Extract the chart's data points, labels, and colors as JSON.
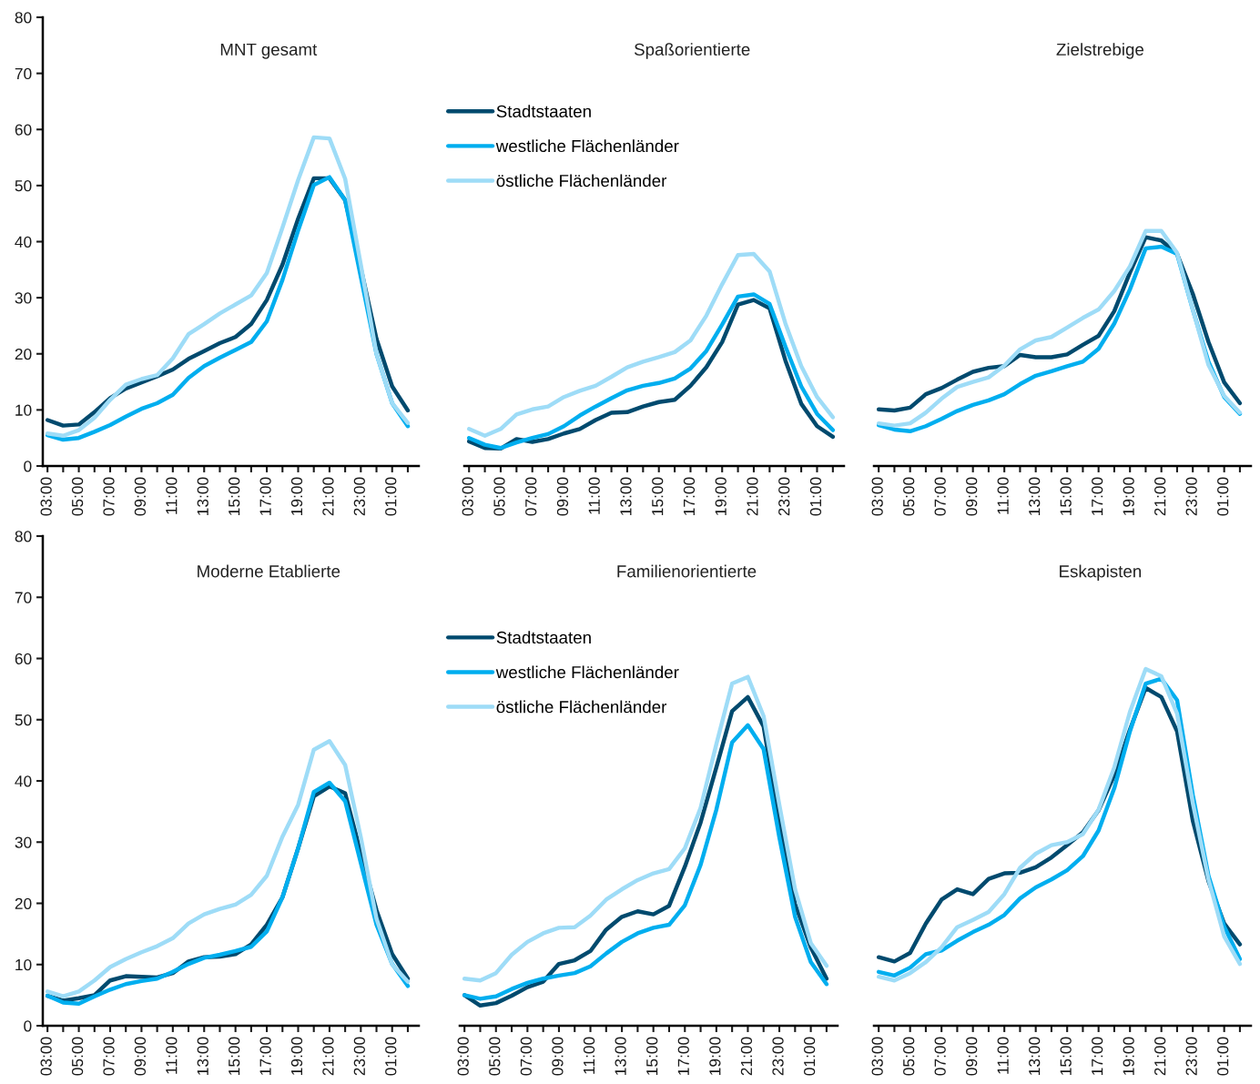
{
  "chart_data": [
    {
      "type": "line",
      "title": "MNT gesamt",
      "categories": [
        "03:00",
        null,
        "05:00",
        null,
        "07:00",
        null,
        "09:00",
        null,
        "11:00",
        null,
        "13:00",
        null,
        "15:00",
        null,
        "17:00",
        null,
        "19:00",
        null,
        "21:00",
        null,
        "23:00",
        null,
        "01:00",
        null
      ],
      "ylim": [
        0,
        80
      ],
      "yticks": [
        0,
        10,
        20,
        30,
        40,
        50,
        60,
        70,
        80
      ],
      "legend": "top right",
      "series": [
        {
          "name": "Stadtstaaten",
          "color": "#004a6e",
          "values": [
            8.2,
            7.2,
            7.4,
            9.6,
            12.1,
            13.8,
            14.9,
            16.0,
            17.2,
            19.1,
            20.5,
            21.9,
            23.0,
            25.3,
            29.6,
            35.9,
            44.1,
            51.3,
            51.3,
            47.4,
            35.3,
            22.7,
            14.2,
            9.9
          ]
        },
        {
          "name": "westliche Flächenländer",
          "color": "#00aeef",
          "values": [
            5.5,
            4.7,
            5.0,
            6.1,
            7.3,
            8.8,
            10.2,
            11.2,
            12.7,
            15.7,
            17.8,
            19.3,
            20.7,
            22.1,
            25.8,
            33.2,
            42.0,
            50.1,
            51.5,
            47.4,
            33.7,
            20.0,
            11.2,
            7.1
          ]
        },
        {
          "name": "östliche Flächenländer",
          "color": "#9edcf7",
          "values": [
            5.8,
            5.4,
            6.4,
            8.6,
            11.8,
            14.5,
            15.5,
            16.2,
            19.2,
            23.5,
            25.3,
            27.2,
            28.8,
            30.4,
            34.4,
            42.5,
            51.0,
            58.6,
            58.4,
            51.2,
            35.9,
            20.0,
            11.2,
            7.7
          ]
        }
      ]
    },
    {
      "type": "line",
      "title": "Spaßorientierte",
      "categories": [
        "03:00",
        null,
        "05:00",
        null,
        "07:00",
        null,
        "09:00",
        null,
        "11:00",
        null,
        "13:00",
        null,
        "15:00",
        null,
        "17:00",
        null,
        "19:00",
        null,
        "21:00",
        null,
        "23:00",
        null,
        "01:00",
        null
      ],
      "ylim": [
        0,
        80
      ],
      "tick_labels": "x",
      "series": [
        {
          "color": "#004a6e",
          "values": [
            4.4,
            3.2,
            3.1,
            4.8,
            4.3,
            4.8,
            5.8,
            6.6,
            8.2,
            9.5,
            9.6,
            10.6,
            11.4,
            11.8,
            14.3,
            17.6,
            22.1,
            28.8,
            29.6,
            28.1,
            18.8,
            11.1,
            7.1,
            5.2
          ]
        },
        {
          "color": "#00aeef",
          "values": [
            5.0,
            3.8,
            3.2,
            4.2,
            5.0,
            5.7,
            7.1,
            9.0,
            10.6,
            12.1,
            13.5,
            14.3,
            14.8,
            15.6,
            17.4,
            20.5,
            25.2,
            30.2,
            30.6,
            28.9,
            21.3,
            14.2,
            9.3,
            6.4
          ]
        },
        {
          "color": "#9edcf7",
          "values": [
            6.6,
            5.4,
            6.6,
            9.2,
            10.1,
            10.6,
            12.3,
            13.4,
            14.3,
            15.9,
            17.6,
            18.6,
            19.4,
            20.3,
            22.4,
            26.8,
            32.4,
            37.6,
            37.8,
            34.7,
            25.4,
            17.8,
            12.3,
            8.7
          ]
        }
      ]
    },
    {
      "type": "line",
      "title": "Zielstrebige",
      "categories": [
        "03:00",
        null,
        "05:00",
        null,
        "07:00",
        null,
        "09:00",
        null,
        "11:00",
        null,
        "13:00",
        null,
        "15:00",
        null,
        "17:00",
        null,
        "19:00",
        null,
        "21:00",
        null,
        "23:00",
        null,
        "01:00",
        null
      ],
      "ylim": [
        0,
        80
      ],
      "tick_labels": "x",
      "series": [
        {
          "color": "#004a6e",
          "values": [
            10.1,
            9.9,
            10.4,
            12.8,
            13.9,
            15.4,
            16.8,
            17.5,
            17.8,
            19.8,
            19.4,
            19.4,
            19.9,
            21.6,
            23.2,
            27.6,
            34.5,
            40.8,
            40.2,
            37.8,
            30.7,
            22.1,
            14.9,
            11.2
          ]
        },
        {
          "color": "#00aeef",
          "values": [
            7.3,
            6.5,
            6.2,
            7.1,
            8.4,
            9.8,
            10.9,
            11.7,
            12.8,
            14.6,
            16.1,
            16.9,
            17.8,
            18.6,
            20.9,
            25.4,
            31.5,
            38.8,
            39.1,
            37.8,
            27.9,
            18.6,
            12.3,
            9.3
          ]
        },
        {
          "color": "#9edcf7",
          "values": [
            7.6,
            7.2,
            7.6,
            9.5,
            12.0,
            14.1,
            15.0,
            15.8,
            17.9,
            20.8,
            22.4,
            23.0,
            24.7,
            26.4,
            27.9,
            31.2,
            35.6,
            41.9,
            41.9,
            38.0,
            27.9,
            18.0,
            12.5,
            9.5
          ]
        }
      ]
    },
    {
      "type": "line",
      "title": "Moderne Etablierte",
      "categories": [
        "03:00",
        null,
        "05:00",
        null,
        "07:00",
        null,
        "09:00",
        null,
        "11:00",
        null,
        "13:00",
        null,
        "15:00",
        null,
        "17:00",
        null,
        "19:00",
        null,
        "21:00",
        null,
        "23:00",
        null,
        "01:00",
        null
      ],
      "ylim": [
        0,
        80
      ],
      "yticks": [
        0,
        10,
        20,
        30,
        40,
        50,
        60,
        70,
        80
      ],
      "legend": "top right",
      "series": [
        {
          "name": "Stadtstaaten",
          "color": "#004a6e",
          "values": [
            4.9,
            4.1,
            4.5,
            5.0,
            7.4,
            8.1,
            8.0,
            7.9,
            8.6,
            10.5,
            11.2,
            11.3,
            11.7,
            13.3,
            16.5,
            21.0,
            29.0,
            37.5,
            39.1,
            38.0,
            28.2,
            18.9,
            11.7,
            7.7
          ]
        },
        {
          "name": "westliche Flächenländer",
          "color": "#00aeef",
          "values": [
            4.9,
            3.8,
            3.6,
            4.8,
            5.9,
            6.8,
            7.3,
            7.7,
            8.8,
            10.1,
            11.1,
            11.6,
            12.2,
            12.9,
            15.4,
            21.0,
            29.0,
            38.2,
            39.7,
            36.7,
            26.6,
            16.5,
            10.1,
            6.5
          ]
        },
        {
          "name": "östliche Flächenländer",
          "color": "#9edcf7",
          "values": [
            5.6,
            4.8,
            5.6,
            7.4,
            9.6,
            10.9,
            12.0,
            13.0,
            14.3,
            16.7,
            18.2,
            19.1,
            19.8,
            21.4,
            24.5,
            30.9,
            36.1,
            45.1,
            46.5,
            42.6,
            30.8,
            17.5,
            10.0,
            7.2
          ]
        }
      ]
    },
    {
      "type": "line",
      "title": "Familienorientierte",
      "categories": [
        "03:00",
        null,
        "05:00",
        null,
        "07:00",
        null,
        "09:00",
        null,
        "11:00",
        null,
        "13:00",
        null,
        "15:00",
        null,
        "17:00",
        null,
        "19:00",
        null,
        "21:00",
        null,
        "23:00",
        null,
        "01:00",
        null
      ],
      "ylim": [
        0,
        80
      ],
      "tick_labels": "x",
      "series": [
        {
          "color": "#004a6e",
          "values": [
            5.0,
            3.3,
            3.7,
            4.9,
            6.3,
            7.2,
            10.1,
            10.7,
            12.2,
            15.7,
            17.8,
            18.7,
            18.2,
            19.6,
            26.0,
            33.2,
            42.2,
            51.4,
            53.7,
            48.9,
            33.5,
            19.9,
            12.8,
            7.7
          ]
        },
        {
          "color": "#00aeef",
          "values": [
            5.0,
            4.4,
            4.8,
            6.0,
            7.0,
            7.7,
            8.2,
            8.6,
            9.7,
            11.8,
            13.7,
            15.1,
            16.0,
            16.5,
            19.7,
            26.3,
            35.3,
            46.3,
            49.1,
            45.2,
            30.8,
            17.8,
            10.4,
            6.8
          ]
        },
        {
          "color": "#9edcf7",
          "values": [
            7.7,
            7.4,
            8.6,
            11.6,
            13.7,
            15.1,
            16.0,
            16.1,
            18.0,
            20.6,
            22.3,
            23.8,
            24.9,
            25.6,
            29.0,
            35.6,
            46.0,
            55.9,
            57.0,
            50.6,
            36.1,
            22.3,
            13.5,
            9.8
          ]
        }
      ]
    },
    {
      "type": "line",
      "title": "Eskapisten",
      "categories": [
        "03:00",
        null,
        "05:00",
        null,
        "07:00",
        null,
        "09:00",
        null,
        "11:00",
        null,
        "13:00",
        null,
        "15:00",
        null,
        "17:00",
        null,
        "19:00",
        null,
        "21:00",
        null,
        "23:00",
        null,
        "01:00",
        null
      ],
      "ylim": [
        0,
        80
      ],
      "tick_labels": "x",
      "series": [
        {
          "color": "#004a6e",
          "values": [
            11.2,
            10.5,
            11.9,
            16.7,
            20.6,
            22.3,
            21.5,
            24.0,
            24.9,
            25.0,
            25.9,
            27.5,
            29.5,
            31.6,
            35.2,
            40.9,
            48.4,
            55.2,
            53.7,
            48.1,
            33.5,
            23.6,
            16.7,
            13.3
          ]
        },
        {
          "color": "#00aeef",
          "values": [
            8.8,
            8.2,
            9.5,
            11.7,
            12.3,
            13.9,
            15.3,
            16.5,
            18.1,
            20.8,
            22.6,
            23.9,
            25.4,
            27.7,
            31.9,
            38.8,
            48.1,
            55.9,
            56.7,
            53.2,
            37.7,
            24.5,
            16.2,
            10.9
          ]
        },
        {
          "color": "#9edcf7",
          "values": [
            8.0,
            7.4,
            8.6,
            10.4,
            12.8,
            16.1,
            17.3,
            18.6,
            21.5,
            25.8,
            28.1,
            29.5,
            30.0,
            31.3,
            35.3,
            42.2,
            51.3,
            58.3,
            57.1,
            51.0,
            36.4,
            23.9,
            14.6,
            10.1
          ]
        }
      ]
    }
  ]
}
